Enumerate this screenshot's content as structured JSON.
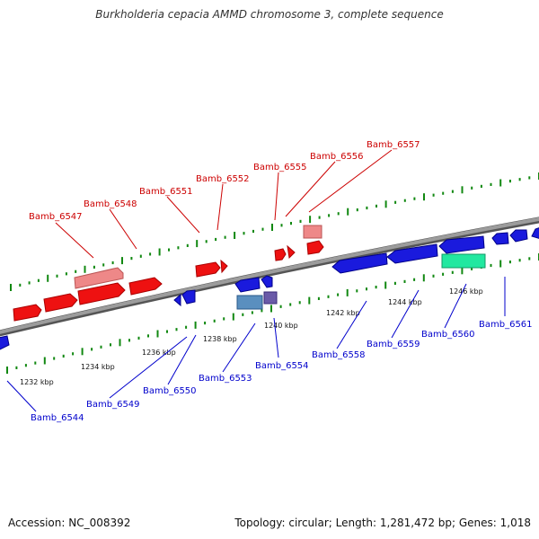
{
  "title": "Burkholderia cepacia AMMD chromosome 3, complete sequence",
  "footer": {
    "accession": "Accession: NC_008392",
    "summary": "Topology: circular; Length: 1,281,472 bp; Genes: 1,018"
  },
  "colors": {
    "backbone": "#8a8a8a",
    "forward_gene": "#ee1111",
    "forward_gene_light": "#ee8888",
    "reverse_gene": "#1a1add",
    "reverse_gene_teal": "#5a8fbf",
    "reverse_gene_purple": "#6a5aa8",
    "green_gene": "#22e8a0",
    "tick": "#118811",
    "forward_label": "#cc0000",
    "reverse_label": "#0000cc"
  },
  "scale_labels": [
    "1232 kbp",
    "1234 kbp",
    "1236 kbp",
    "1238 kbp",
    "1240 kbp",
    "1242 kbp",
    "1244 kbp",
    "1246 kbp"
  ],
  "forward_labels": [
    "Bamb_6547",
    "Bamb_6548",
    "Bamb_6551",
    "Bamb_6552",
    "Bamb_6555",
    "Bamb_6556",
    "Bamb_6557"
  ],
  "reverse_labels": [
    "Bamb_6544",
    "Bamb_6549",
    "Bamb_6550",
    "Bamb_6553",
    "Bamb_6554",
    "Bamb_6558",
    "Bamb_6559",
    "Bamb_6560",
    "Bamb_6561"
  ]
}
